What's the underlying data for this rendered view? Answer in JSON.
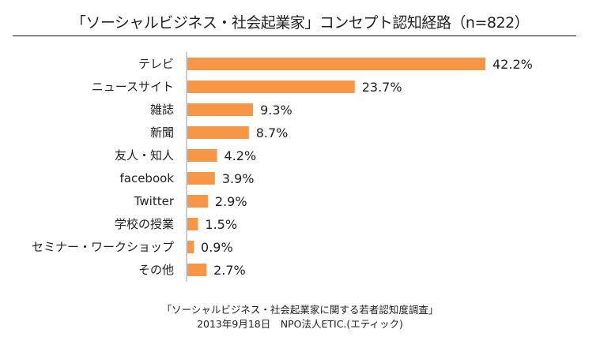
{
  "chart_data": {
    "type": "bar",
    "orientation": "horizontal",
    "title": "「ソーシャルビジネス・社会起業家」コンセプト認知経路（n=822）",
    "categories": [
      "テレビ",
      "ニュースサイト",
      "雑誌",
      "新聞",
      "友人・知人",
      "facebook",
      "Twitter",
      "学校の授業",
      "セミナー・ワークショップ",
      "その他"
    ],
    "values": [
      42.2,
      23.7,
      9.3,
      8.7,
      4.2,
      3.9,
      2.9,
      1.5,
      0.9,
      2.7
    ],
    "value_labels": [
      "42.2%",
      "23.7%",
      "9.3%",
      "8.7%",
      "4.2%",
      "3.9%",
      "2.9%",
      "1.5%",
      "0.9%",
      "2.7%"
    ],
    "xlabel": "",
    "ylabel": "",
    "xlim": [
      0,
      42.2
    ],
    "grid": false,
    "bar_color": "#F79646"
  },
  "footer": {
    "line1": "「ソーシャルビジネス・社会起業家に関する若者認知度調査」",
    "line2": "2013年9月18日　NPO法人ETIC.(エティック)"
  }
}
